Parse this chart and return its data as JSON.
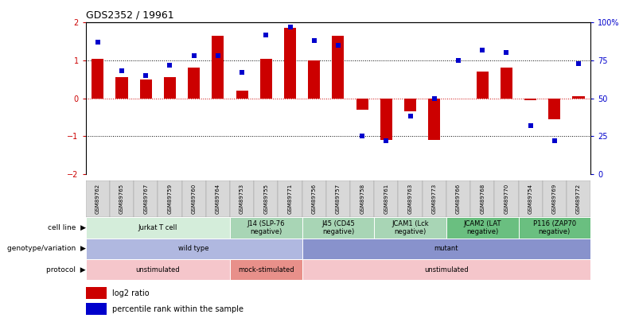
{
  "title": "GDS2352 / 19961",
  "samples": [
    "GSM89762",
    "GSM89765",
    "GSM89767",
    "GSM89759",
    "GSM89760",
    "GSM89764",
    "GSM89753",
    "GSM89755",
    "GSM89771",
    "GSM89756",
    "GSM89757",
    "GSM89758",
    "GSM89761",
    "GSM89763",
    "GSM89773",
    "GSM89766",
    "GSM89768",
    "GSM89770",
    "GSM89754",
    "GSM89769",
    "GSM89772"
  ],
  "log2_ratio": [
    1.05,
    0.55,
    0.5,
    0.55,
    0.8,
    1.65,
    0.2,
    1.05,
    1.85,
    1.0,
    1.65,
    -0.3,
    -1.1,
    -0.35,
    -1.1,
    0.0,
    0.7,
    0.8,
    -0.05,
    -0.55,
    0.05
  ],
  "pct_rank": [
    87,
    68,
    65,
    72,
    78,
    78,
    67,
    92,
    97,
    88,
    85,
    25,
    22,
    38,
    50,
    75,
    82,
    80,
    32,
    22,
    73
  ],
  "ylim_left": [
    -2,
    2
  ],
  "ylim_right": [
    0,
    100
  ],
  "cell_line_groups": [
    {
      "label": "Jurkat T cell",
      "start": 0,
      "end": 6,
      "color": "#d4edda"
    },
    {
      "label": "J14 (SLP-76\nnegative)",
      "start": 6,
      "end": 9,
      "color": "#a8d5b5"
    },
    {
      "label": "J45 (CD45\nnegative)",
      "start": 9,
      "end": 12,
      "color": "#a8d5b5"
    },
    {
      "label": "JCAM1 (Lck\nnegative)",
      "start": 12,
      "end": 15,
      "color": "#a8d5b5"
    },
    {
      "label": "JCAM2 (LAT\nnegative)",
      "start": 15,
      "end": 18,
      "color": "#6abf80"
    },
    {
      "label": "P116 (ZAP70\nnegative)",
      "start": 18,
      "end": 21,
      "color": "#6abf80"
    }
  ],
  "genotype_groups": [
    {
      "label": "wild type",
      "start": 0,
      "end": 9,
      "color": "#b0b8e0"
    },
    {
      "label": "mutant",
      "start": 9,
      "end": 21,
      "color": "#8892cc"
    }
  ],
  "protocol_groups": [
    {
      "label": "unstimulated",
      "start": 0,
      "end": 6,
      "color": "#f5c6cb"
    },
    {
      "label": "mock-stimulated",
      "start": 6,
      "end": 9,
      "color": "#e8908a"
    },
    {
      "label": "unstimulated",
      "start": 9,
      "end": 21,
      "color": "#f5c6cb"
    }
  ],
  "bar_color": "#cc0000",
  "dot_color": "#0000cc",
  "zero_line_color": "#cc0000",
  "background_color": "#ffffff",
  "row_labels": [
    "cell line",
    "genotype/variation",
    "protocol"
  ],
  "legend": [
    "log2 ratio",
    "percentile rank within the sample"
  ],
  "tick_bg_color": "#d8d8d8",
  "tick_border_color": "#999999"
}
